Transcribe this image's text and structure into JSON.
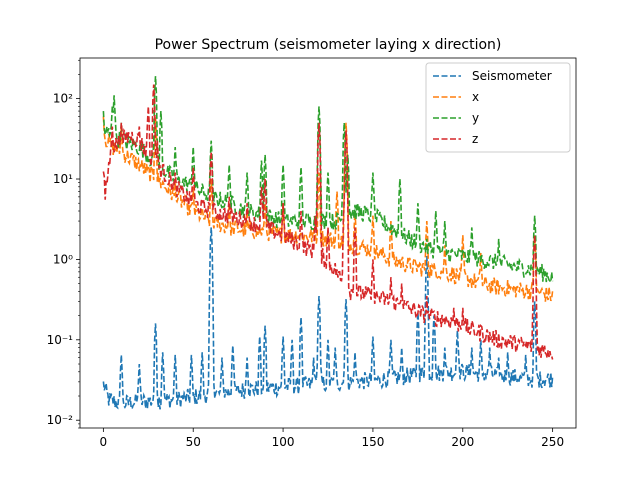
{
  "chart_data": {
    "type": "line",
    "title": "Power Spectrum (seismometer laying x direction)",
    "xlabel": "",
    "ylabel": "",
    "xlim": [
      -13,
      263
    ],
    "ylim": [
      0.008,
      320
    ],
    "yscale": "log",
    "xticks": [
      0,
      50,
      100,
      150,
      200,
      250
    ],
    "xtick_labels": [
      "0",
      "50",
      "100",
      "150",
      "200",
      "250"
    ],
    "yticks": [
      0.01,
      0.1,
      1,
      10,
      100
    ],
    "ytick_labels": [
      "10⁻²",
      "10⁻¹",
      "10⁰",
      "10¹",
      "10²"
    ],
    "grid": false,
    "legend_position": "top-right",
    "line_style": "dashed",
    "series": [
      {
        "name": "Seismometer",
        "color": "#1f77b4",
        "baseline": [
          [
            0,
            0.028
          ],
          [
            3,
            0.018
          ],
          [
            10,
            0.016
          ],
          [
            20,
            0.017
          ],
          [
            40,
            0.018
          ],
          [
            60,
            0.021
          ],
          [
            80,
            0.024
          ],
          [
            100,
            0.026
          ],
          [
            120,
            0.028
          ],
          [
            140,
            0.03
          ],
          [
            160,
            0.033
          ],
          [
            180,
            0.038
          ],
          [
            200,
            0.04
          ],
          [
            220,
            0.036
          ],
          [
            240,
            0.032
          ],
          [
            250,
            0.033
          ]
        ],
        "peaks": [
          [
            10,
            0.065
          ],
          [
            20,
            0.05
          ],
          [
            29,
            0.16
          ],
          [
            33,
            0.07
          ],
          [
            40,
            0.065
          ],
          [
            49,
            0.065
          ],
          [
            55,
            0.07
          ],
          [
            60,
            2.5
          ],
          [
            66,
            0.06
          ],
          [
            72,
            0.085
          ],
          [
            80,
            0.06
          ],
          [
            87,
            0.11
          ],
          [
            90,
            0.15
          ],
          [
            100,
            0.11
          ],
          [
            105,
            0.1
          ],
          [
            110,
            0.19
          ],
          [
            117,
            0.06
          ],
          [
            120,
            0.35
          ],
          [
            125,
            0.1
          ],
          [
            129,
            0.08
          ],
          [
            135,
            0.32
          ],
          [
            140,
            0.07
          ],
          [
            150,
            0.11
          ],
          [
            160,
            0.1
          ],
          [
            166,
            0.08
          ],
          [
            175,
            0.22
          ],
          [
            180,
            1.1
          ],
          [
            184,
            0.2
          ],
          [
            190,
            0.08
          ],
          [
            197,
            0.13
          ],
          [
            205,
            0.08
          ],
          [
            210,
            0.1
          ],
          [
            215,
            0.08
          ],
          [
            220,
            0.06
          ],
          [
            225,
            0.07
          ],
          [
            235,
            0.065
          ],
          [
            240,
            0.3
          ]
        ]
      },
      {
        "name": "x",
        "color": "#ff7f0e",
        "baseline": [
          [
            0,
            35
          ],
          [
            5,
            25
          ],
          [
            10,
            22
          ],
          [
            15,
            18
          ],
          [
            20,
            15
          ],
          [
            25,
            12
          ],
          [
            30,
            10
          ],
          [
            40,
            6
          ],
          [
            50,
            4
          ],
          [
            60,
            3
          ],
          [
            70,
            2.5
          ],
          [
            80,
            2.3
          ],
          [
            90,
            2.2
          ],
          [
            100,
            2.0
          ],
          [
            110,
            2.0
          ],
          [
            120,
            1.9
          ],
          [
            130,
            1.7
          ],
          [
            140,
            1.5
          ],
          [
            150,
            1.3
          ],
          [
            160,
            1.0
          ],
          [
            170,
            0.85
          ],
          [
            180,
            0.75
          ],
          [
            190,
            0.7
          ],
          [
            200,
            0.6
          ],
          [
            210,
            0.5
          ],
          [
            220,
            0.45
          ],
          [
            230,
            0.42
          ],
          [
            240,
            0.4
          ],
          [
            250,
            0.35
          ]
        ],
        "peaks": [
          [
            0,
            60
          ],
          [
            10,
            45
          ],
          [
            29,
            60
          ],
          [
            40,
            9
          ],
          [
            50,
            8
          ],
          [
            60,
            10
          ],
          [
            70,
            5
          ],
          [
            80,
            4
          ],
          [
            90,
            5
          ],
          [
            100,
            5
          ],
          [
            120,
            12
          ],
          [
            130,
            7
          ],
          [
            135,
            50
          ],
          [
            140,
            4
          ],
          [
            150,
            3.5
          ],
          [
            160,
            3
          ],
          [
            180,
            3
          ],
          [
            190,
            1.5
          ],
          [
            200,
            2
          ],
          [
            210,
            1.2
          ],
          [
            240,
            2
          ]
        ]
      },
      {
        "name": "y",
        "color": "#2ca02c",
        "baseline": [
          [
            0,
            40
          ],
          [
            5,
            35
          ],
          [
            10,
            30
          ],
          [
            20,
            25
          ],
          [
            30,
            15
          ],
          [
            40,
            10
          ],
          [
            50,
            8
          ],
          [
            60,
            6
          ],
          [
            70,
            5
          ],
          [
            80,
            4
          ],
          [
            90,
            3.5
          ],
          [
            100,
            3
          ],
          [
            110,
            3
          ],
          [
            120,
            3
          ],
          [
            130,
            3
          ],
          [
            140,
            4
          ],
          [
            150,
            3.5
          ],
          [
            160,
            2.5
          ],
          [
            170,
            1.8
          ],
          [
            180,
            1.4
          ],
          [
            190,
            1.2
          ],
          [
            200,
            1.1
          ],
          [
            210,
            1.0
          ],
          [
            220,
            0.9
          ],
          [
            230,
            0.8
          ],
          [
            240,
            0.75
          ],
          [
            250,
            0.6
          ]
        ],
        "peaks": [
          [
            0,
            70
          ],
          [
            5,
            80
          ],
          [
            6,
            110
          ],
          [
            10,
            50
          ],
          [
            29,
            190
          ],
          [
            32,
            70
          ],
          [
            40,
            25
          ],
          [
            50,
            25
          ],
          [
            60,
            30
          ],
          [
            70,
            15
          ],
          [
            80,
            12
          ],
          [
            88,
            17
          ],
          [
            90,
            20
          ],
          [
            100,
            15
          ],
          [
            110,
            14
          ],
          [
            120,
            80
          ],
          [
            125,
            12
          ],
          [
            134,
            50
          ],
          [
            136,
            20
          ],
          [
            150,
            12
          ],
          [
            165,
            10
          ],
          [
            175,
            5
          ],
          [
            185,
            4
          ],
          [
            190,
            3
          ],
          [
            205,
            2.5
          ],
          [
            220,
            1.8
          ],
          [
            240,
            3.5
          ]
        ]
      },
      {
        "name": "z",
        "color": "#d62728",
        "baseline": [
          [
            0,
            12
          ],
          [
            1,
            6
          ],
          [
            3,
            15
          ],
          [
            5,
            25
          ],
          [
            10,
            30
          ],
          [
            15,
            35
          ],
          [
            20,
            30
          ],
          [
            25,
            20
          ],
          [
            30,
            15
          ],
          [
            40,
            8
          ],
          [
            50,
            5
          ],
          [
            60,
            4
          ],
          [
            70,
            3.5
          ],
          [
            80,
            3
          ],
          [
            90,
            2.5
          ],
          [
            100,
            2
          ],
          [
            110,
            1.5
          ],
          [
            120,
            1.2
          ],
          [
            130,
            0.7
          ],
          [
            135,
            0.4
          ],
          [
            140,
            0.4
          ],
          [
            150,
            0.35
          ],
          [
            160,
            0.3
          ],
          [
            170,
            0.25
          ],
          [
            180,
            0.2
          ],
          [
            190,
            0.18
          ],
          [
            200,
            0.15
          ],
          [
            210,
            0.12
          ],
          [
            220,
            0.1
          ],
          [
            230,
            0.09
          ],
          [
            240,
            0.08
          ],
          [
            250,
            0.07
          ]
        ],
        "peaks": [
          [
            5,
            45
          ],
          [
            10,
            50
          ],
          [
            20,
            45
          ],
          [
            25,
            80
          ],
          [
            28,
            150
          ],
          [
            30,
            30
          ],
          [
            40,
            12
          ],
          [
            50,
            14
          ],
          [
            60,
            22
          ],
          [
            70,
            6
          ],
          [
            80,
            5
          ],
          [
            88,
            8
          ],
          [
            90,
            10
          ],
          [
            100,
            5
          ],
          [
            110,
            4
          ],
          [
            118,
            3.5
          ],
          [
            120,
            50
          ],
          [
            125,
            2.5
          ],
          [
            134,
            5
          ],
          [
            135,
            40
          ],
          [
            140,
            2.5
          ],
          [
            150,
            1
          ],
          [
            160,
            0.6
          ],
          [
            166,
            0.5
          ],
          [
            180,
            0.35
          ],
          [
            195,
            0.25
          ],
          [
            200,
            0.25
          ],
          [
            210,
            0.15
          ],
          [
            240,
            2
          ]
        ]
      }
    ]
  }
}
